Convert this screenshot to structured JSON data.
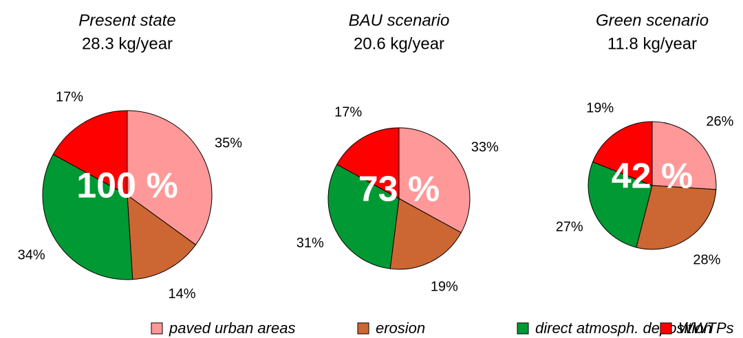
{
  "chart_data": [
    {
      "type": "pie",
      "title": "Present state",
      "subtitle": "28.3 kg/year",
      "center_label": "100 %",
      "categories": [
        "paved urban areas",
        "erosion",
        "direct atmosph. deposition",
        "WWTPs"
      ],
      "values": [
        35,
        14,
        34,
        17
      ],
      "value_labels": [
        "35%",
        "14%",
        "34%",
        "17%"
      ],
      "colors": [
        "#ff9999",
        "#cc6633",
        "#009933",
        "#ff0000"
      ]
    },
    {
      "type": "pie",
      "title": "BAU scenario",
      "subtitle": "20.6 kg/year",
      "center_label": "73 %",
      "categories": [
        "paved urban areas",
        "erosion",
        "direct atmosph. deposition",
        "WWTPs"
      ],
      "values": [
        33,
        19,
        31,
        17
      ],
      "value_labels": [
        "33%",
        "19%",
        "31%",
        "17%"
      ],
      "colors": [
        "#ff9999",
        "#cc6633",
        "#009933",
        "#ff0000"
      ]
    },
    {
      "type": "pie",
      "title": "Green scenario",
      "subtitle": "11.8 kg/year",
      "center_label": "42 %",
      "categories": [
        "paved urban areas",
        "erosion",
        "direct atmosph. deposition",
        "WWTPs"
      ],
      "values": [
        26,
        28,
        27,
        19
      ],
      "value_labels": [
        "26%",
        "28%",
        "27%",
        "19%"
      ],
      "colors": [
        "#ff9999",
        "#cc6633",
        "#009933",
        "#ff0000"
      ]
    }
  ]
}
